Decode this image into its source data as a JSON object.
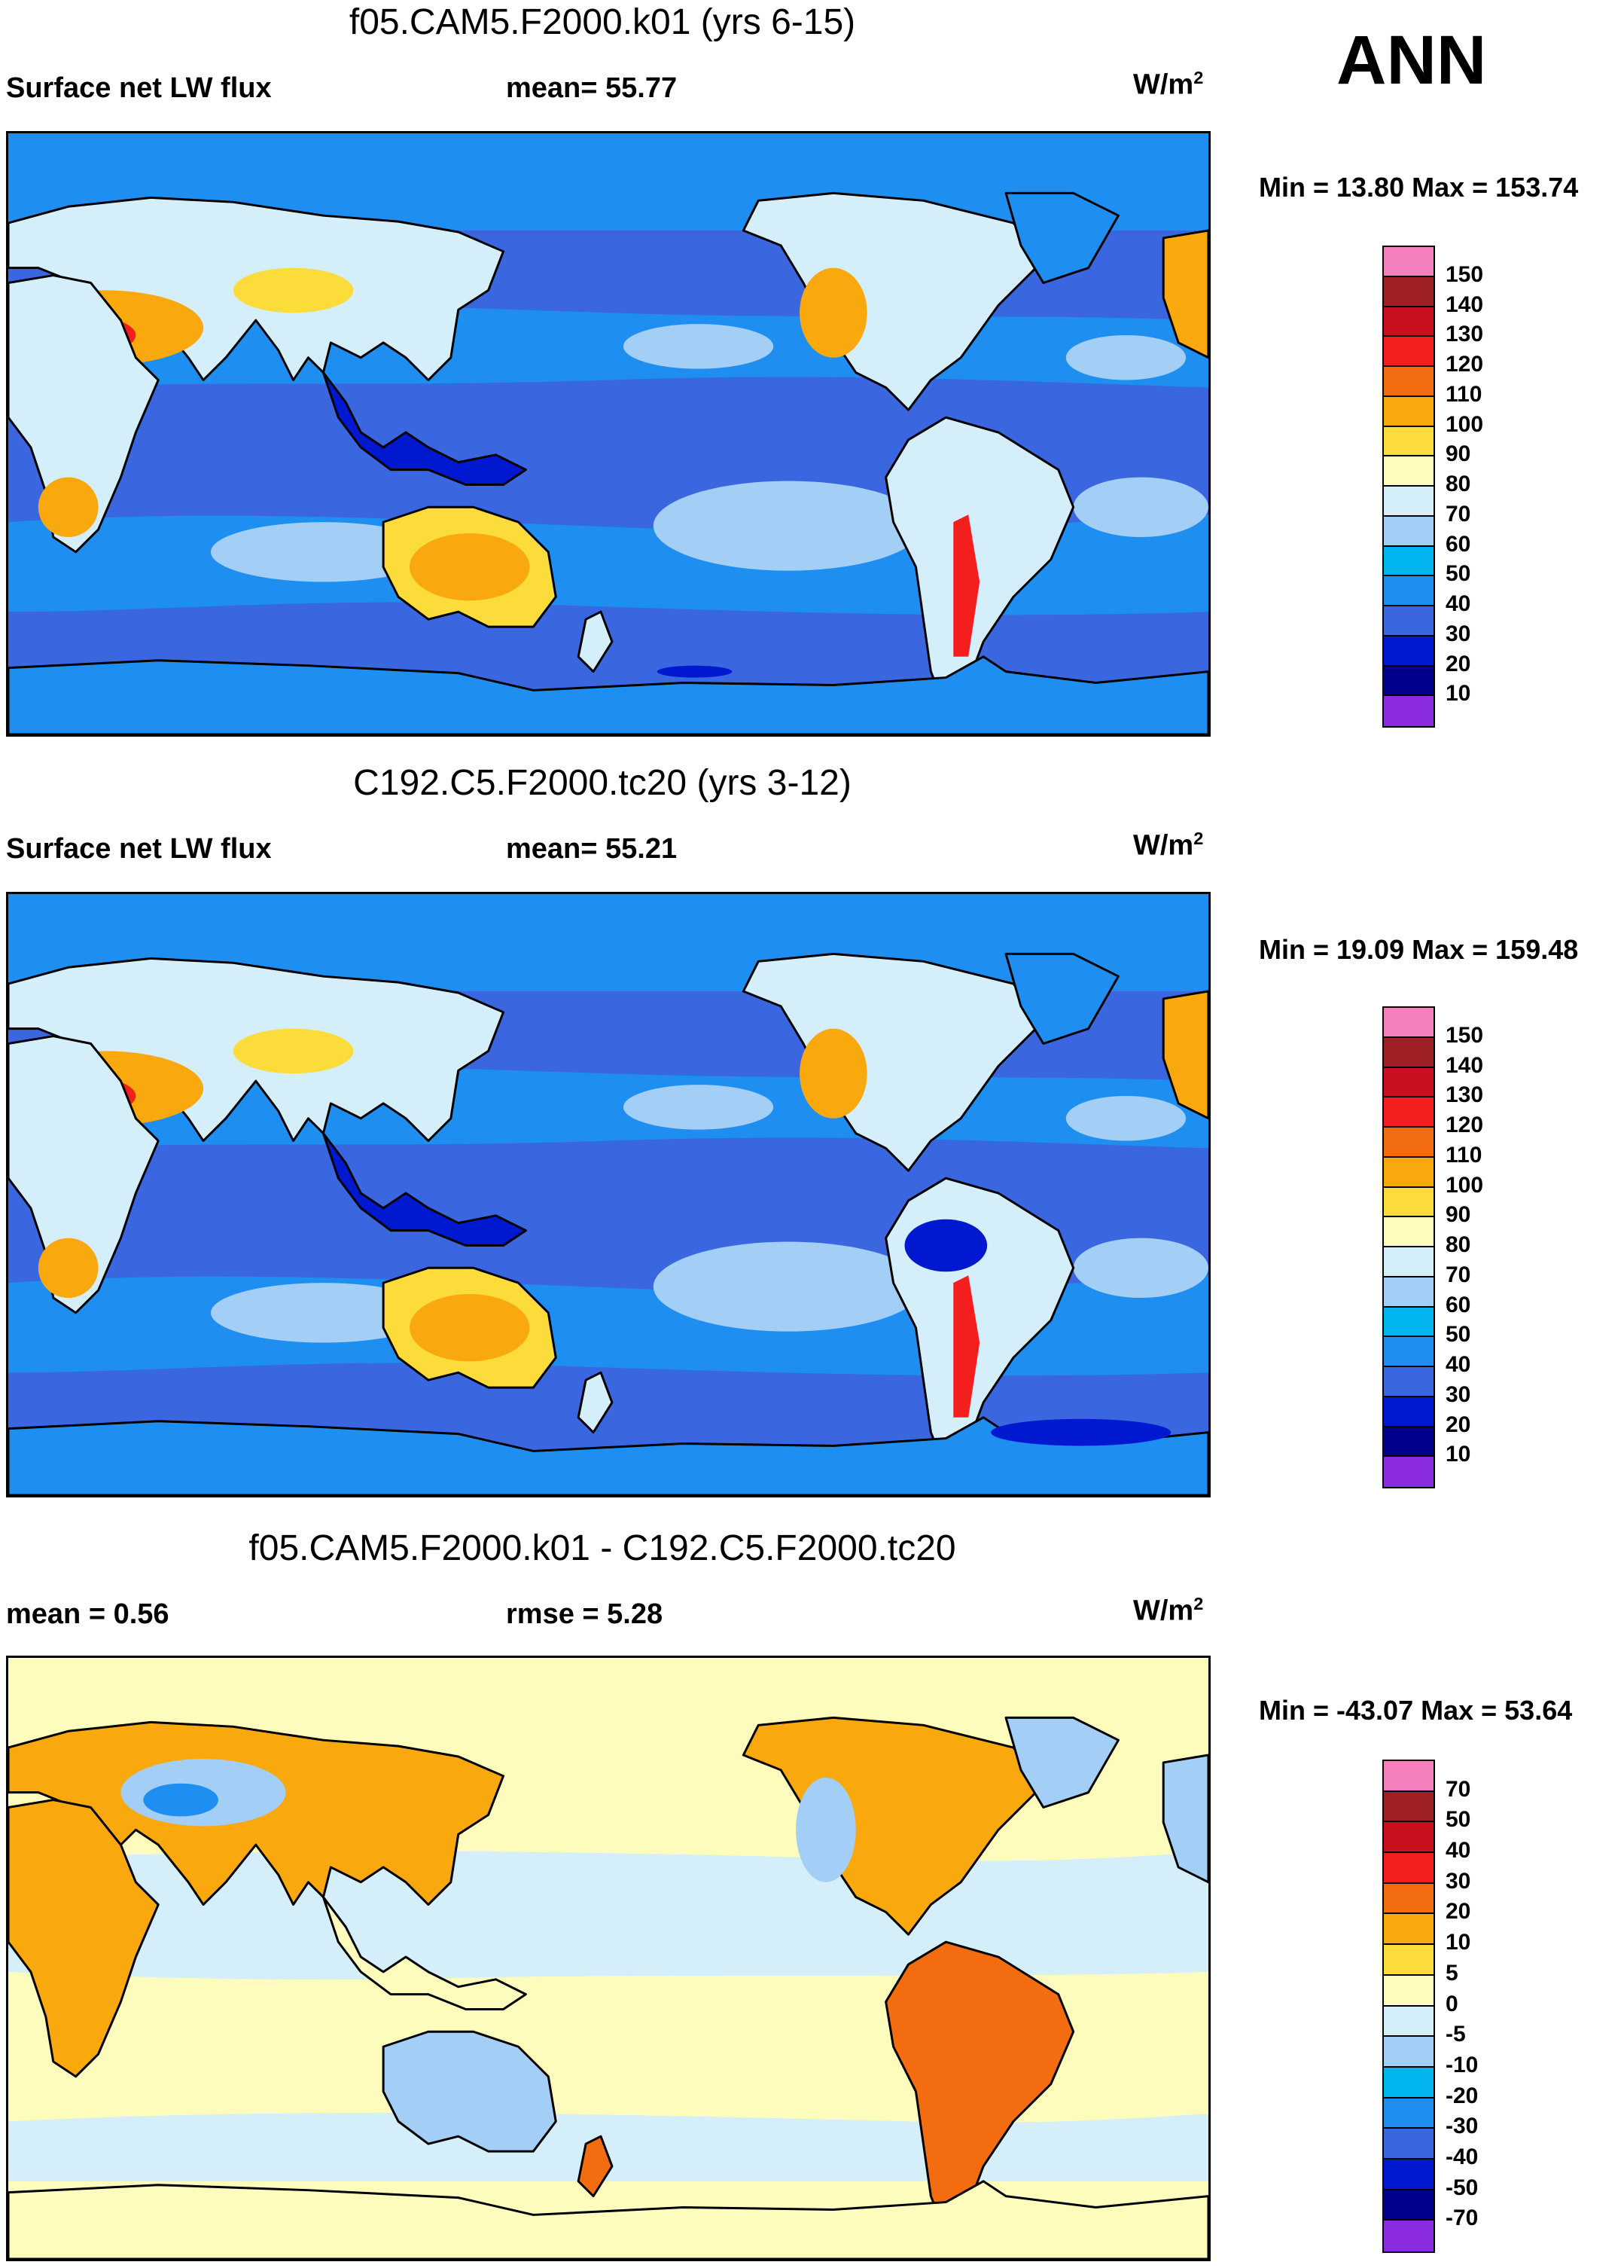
{
  "season": "ANN",
  "panels": [
    {
      "title": "f05.CAM5.F2000.k01 (yrs 6-15)",
      "left_label": "Surface net LW flux",
      "center_label": "mean=  55.77",
      "units": "W/m",
      "units_exp": "2",
      "min_max": "Min =  13.80 Max = 153.74",
      "colorbar": {
        "labels": [
          "150",
          "140",
          "130",
          "120",
          "110",
          "100",
          "90",
          "80",
          "70",
          "60",
          "50",
          "40",
          "30",
          "20",
          "10"
        ],
        "colors": [
          "#f57fbd",
          "#9e2024",
          "#c8101e",
          "#f41e1e",
          "#f36d10",
          "#f9a80e",
          "#fcdc3a",
          "#fefcbd",
          "#d4eefa",
          "#a3cef6",
          "#00b4f0",
          "#1e8ef0",
          "#3a66e0",
          "#0019d0",
          "#00008c",
          "#8a2be2"
        ]
      }
    },
    {
      "title": "C192.C5.F2000.tc20 (yrs 3-12)",
      "left_label": "Surface net LW flux",
      "center_label": "mean=  55.21",
      "units": "W/m",
      "units_exp": "2",
      "min_max": "Min =  19.09 Max = 159.48",
      "colorbar": {
        "labels": [
          "150",
          "140",
          "130",
          "120",
          "110",
          "100",
          "90",
          "80",
          "70",
          "60",
          "50",
          "40",
          "30",
          "20",
          "10"
        ],
        "colors": [
          "#f57fbd",
          "#9e2024",
          "#c8101e",
          "#f41e1e",
          "#f36d10",
          "#f9a80e",
          "#fcdc3a",
          "#fefcbd",
          "#d4eefa",
          "#a3cef6",
          "#00b4f0",
          "#1e8ef0",
          "#3a66e0",
          "#0019d0",
          "#00008c",
          "#8a2be2"
        ]
      }
    },
    {
      "title": "f05.CAM5.F2000.k01 - C192.C5.F2000.tc20",
      "left_label": "mean =   0.56",
      "center_label": "rmse =   5.28",
      "units": "W/m",
      "units_exp": "2",
      "min_max": "Min = -43.07 Max =  53.64",
      "colorbar": {
        "labels": [
          "70",
          "50",
          "40",
          "30",
          "20",
          "10",
          "5",
          "0",
          "-5",
          "-10",
          "-20",
          "-30",
          "-40",
          "-50",
          "-70"
        ],
        "colors": [
          "#f57fbd",
          "#9e2024",
          "#c8101e",
          "#f41e1e",
          "#f36d10",
          "#f9a80e",
          "#fcdc3a",
          "#fefcbd",
          "#d4eefa",
          "#a3cef6",
          "#00b4f0",
          "#1e8ef0",
          "#3a66e0",
          "#0019d0",
          "#00008c",
          "#8a2be2"
        ]
      }
    }
  ],
  "map_palette": {
    "ocean_base": "#3a66e0",
    "ocean_band": "#1e8ef0",
    "ocean_light": "#a3cef6",
    "arctic": "#1e8ef0",
    "desert_hot": "#f41e1e",
    "desert_warm": "#f9a80e",
    "desert_mild": "#fcdc3a",
    "land_cool": "#d4eefa",
    "tropical_wet": "#0019d0",
    "diff_base": "#d4eefa",
    "diff_pos": "#fefcbd",
    "diff_land_pos": "#f9a80e",
    "diff_land_hot": "#f36d10",
    "diff_neg": "#a3cef6",
    "diff_neg_strong": "#1e8ef0",
    "coast": "#000000"
  }
}
